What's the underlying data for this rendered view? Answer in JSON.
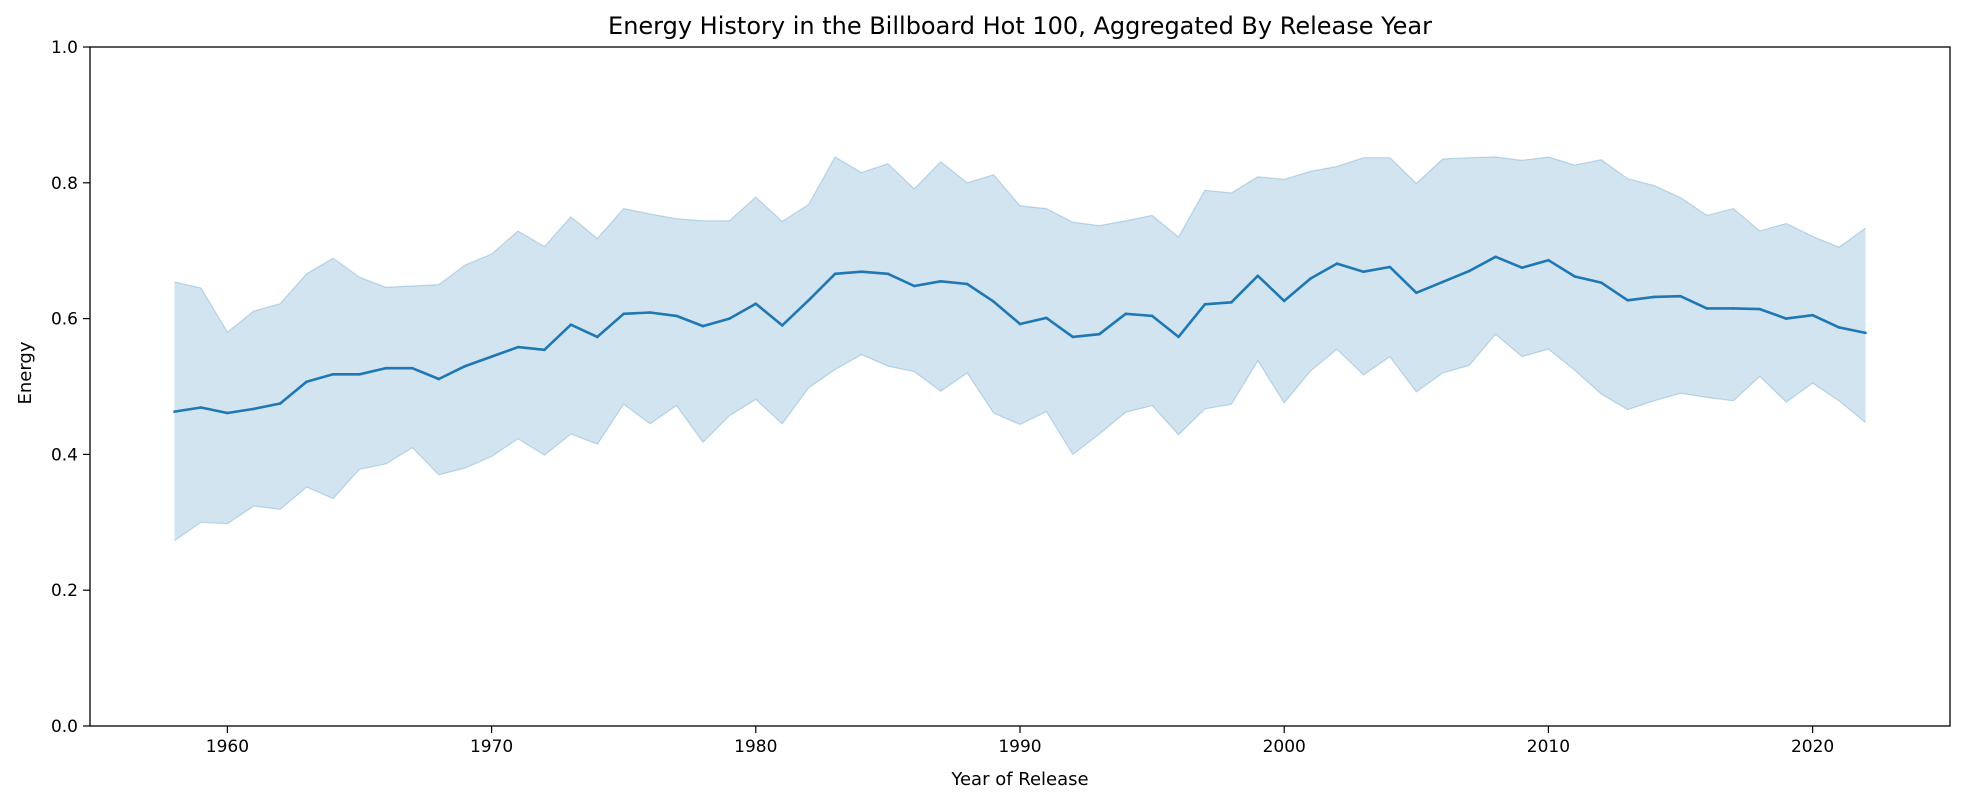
{
  "chart_data": {
    "type": "line",
    "title": "Energy History in the Billboard Hot 100, Aggregated By Release Year",
    "xlabel": "Year of Release",
    "ylabel": "Energy",
    "xlim": [
      1954.8,
      2025.2
    ],
    "ylim": [
      0.0,
      1.0
    ],
    "xticks": [
      1960,
      1970,
      1980,
      1990,
      2000,
      2010,
      2020
    ],
    "yticks": [
      0.0,
      0.2,
      0.4,
      0.6,
      0.8,
      1.0
    ],
    "grid": false,
    "legend": "none",
    "line_color": "#1f77b4",
    "band_color": "#1f77b4",
    "x": [
      1958,
      1959,
      1960,
      1961,
      1962,
      1963,
      1964,
      1965,
      1966,
      1967,
      1968,
      1969,
      1970,
      1971,
      1972,
      1973,
      1974,
      1975,
      1976,
      1977,
      1978,
      1979,
      1980,
      1981,
      1982,
      1983,
      1984,
      1985,
      1986,
      1987,
      1988,
      1989,
      1990,
      1991,
      1992,
      1993,
      1994,
      1995,
      1996,
      1997,
      1998,
      1999,
      2000,
      2001,
      2002,
      2003,
      2004,
      2005,
      2006,
      2007,
      2008,
      2009,
      2010,
      2011,
      2012,
      2013,
      2014,
      2015,
      2016,
      2017,
      2018,
      2019,
      2020,
      2021,
      2022
    ],
    "series": [
      {
        "values": [
          0.463,
          0.469,
          0.461,
          0.467,
          0.475,
          0.507,
          0.518,
          0.518,
          0.527,
          0.527,
          0.511,
          0.53,
          0.544,
          0.558,
          0.554,
          0.591,
          0.573,
          0.607,
          0.609,
          0.604,
          0.589,
          0.6,
          0.622,
          0.59,
          0.627,
          0.666,
          0.669,
          0.666,
          0.648,
          0.655,
          0.651,
          0.625,
          0.592,
          0.601,
          0.573,
          0.577,
          0.607,
          0.604,
          0.573,
          0.621,
          0.624,
          0.663,
          0.626,
          0.659,
          0.681,
          0.669,
          0.676,
          0.638,
          0.654,
          0.67,
          0.691,
          0.675,
          0.686,
          0.662,
          0.653,
          0.627,
          0.632,
          0.633,
          0.615,
          0.615,
          0.614,
          0.6,
          0.605,
          0.587,
          0.579
        ],
        "lower": [
          0.273,
          0.3,
          0.298,
          0.324,
          0.319,
          0.352,
          0.335,
          0.378,
          0.386,
          0.41,
          0.37,
          0.38,
          0.397,
          0.423,
          0.399,
          0.43,
          0.415,
          0.474,
          0.445,
          0.472,
          0.418,
          0.457,
          0.481,
          0.445,
          0.498,
          0.525,
          0.547,
          0.53,
          0.522,
          0.493,
          0.52,
          0.461,
          0.444,
          0.463,
          0.4,
          0.43,
          0.462,
          0.472,
          0.429,
          0.467,
          0.474,
          0.538,
          0.476,
          0.523,
          0.555,
          0.517,
          0.544,
          0.492,
          0.52,
          0.531,
          0.577,
          0.544,
          0.555,
          0.524,
          0.489,
          0.466,
          0.479,
          0.49,
          0.484,
          0.479,
          0.515,
          0.477,
          0.505,
          0.479,
          0.447
        ],
        "upper": [
          0.654,
          0.645,
          0.58,
          0.611,
          0.622,
          0.666,
          0.689,
          0.661,
          0.646,
          0.648,
          0.65,
          0.679,
          0.695,
          0.729,
          0.706,
          0.75,
          0.718,
          0.762,
          0.754,
          0.747,
          0.744,
          0.744,
          0.779,
          0.743,
          0.768,
          0.838,
          0.815,
          0.828,
          0.791,
          0.831,
          0.8,
          0.812,
          0.766,
          0.762,
          0.742,
          0.737,
          0.744,
          0.752,
          0.72,
          0.789,
          0.785,
          0.809,
          0.805,
          0.817,
          0.824,
          0.837,
          0.837,
          0.799,
          0.835,
          0.837,
          0.838,
          0.833,
          0.838,
          0.826,
          0.834,
          0.806,
          0.796,
          0.778,
          0.752,
          0.762,
          0.729,
          0.74,
          0.721,
          0.705,
          0.733
        ]
      }
    ]
  }
}
